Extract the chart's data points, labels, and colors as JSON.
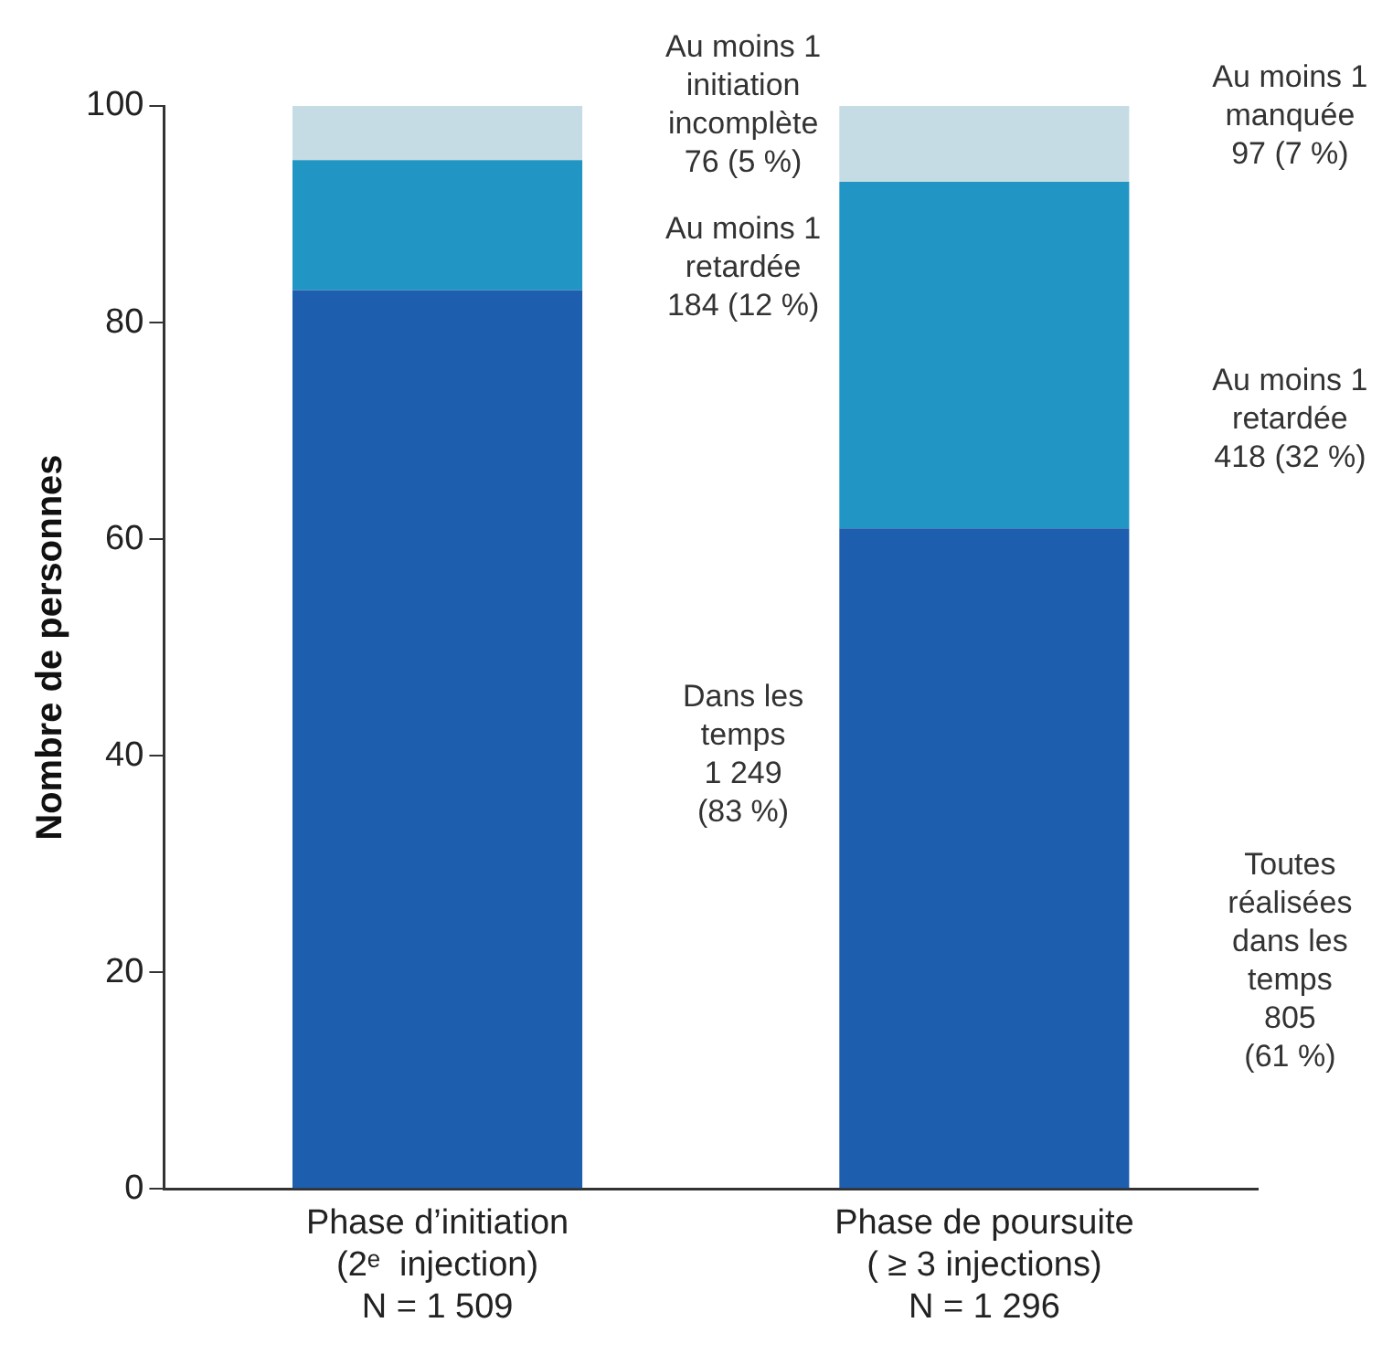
{
  "chart_data": {
    "type": "bar",
    "stacked": true,
    "ylabel": "Nombre de personnes",
    "categories": [
      "Phase d’initiation\n(2ᵉ  injection)\nN = 1 509",
      "Phase de poursuite\n( ≥ 3 injections)\nN = 1 296"
    ],
    "series": [
      {
        "color": "#1d5fae",
        "values": [
          83,
          61
        ]
      },
      {
        "color": "#2196c4",
        "values": [
          12,
          32
        ]
      },
      {
        "color": "#c6dce4",
        "values": [
          5,
          7
        ]
      }
    ],
    "ylim": [
      0,
      100
    ],
    "yticks": [
      0,
      20,
      40,
      60,
      80,
      100
    ],
    "grid": false,
    "legend": false,
    "annotations": [
      "Au moins 1\ninitiation\nincomplète\n76 (5 %)",
      "Au moins 1\nretardée\n184 (12 %)",
      "Dans les\ntemps\n1 249\n(83 %)",
      "Au moins 1\nmanquée\n97 (7 %)",
      "Au moins 1\nretardée\n418 (32 %)",
      "Toutes\nréalisées\ndans les\ntemps\n805\n(61 %)"
    ]
  }
}
